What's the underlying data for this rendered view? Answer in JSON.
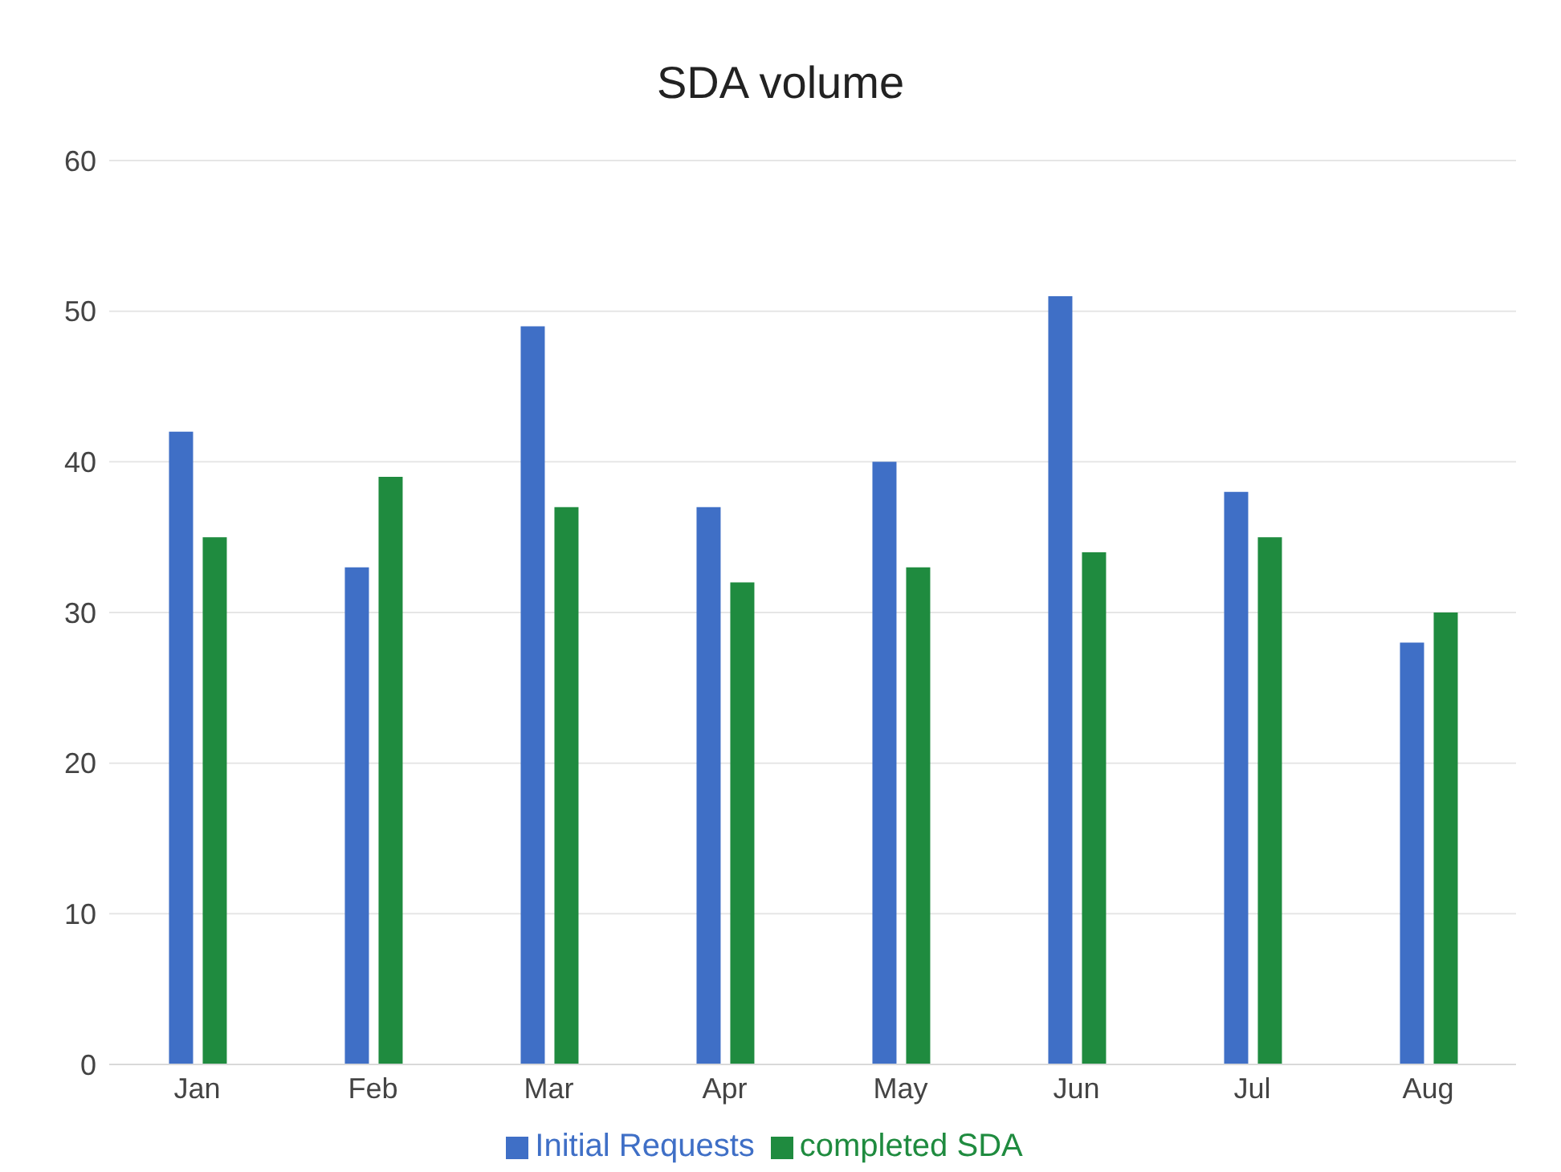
{
  "chart_data": {
    "type": "bar",
    "title": "SDA volume",
    "categories": [
      "Jan",
      "Feb",
      "Mar",
      "Apr",
      "May",
      "Jun",
      "Jul",
      "Aug"
    ],
    "series": [
      {
        "name": "Initial Requests",
        "color": "#3f6fc6",
        "values": [
          42,
          33,
          49,
          37,
          40,
          51,
          38,
          28
        ]
      },
      {
        "name": "completed SDA",
        "color": "#1f8b3f",
        "values": [
          35,
          39,
          37,
          32,
          33,
          34,
          35,
          30
        ]
      }
    ],
    "ylim": [
      0,
      60
    ],
    "yticks": [
      0,
      10,
      20,
      30,
      40,
      50,
      60
    ],
    "grid": "y",
    "legend": "bottom"
  }
}
